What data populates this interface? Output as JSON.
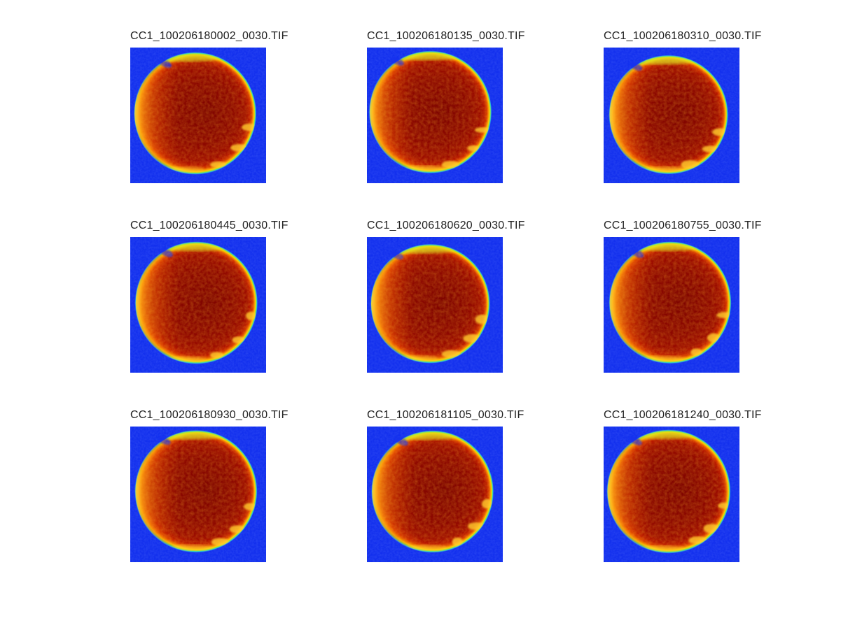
{
  "figure": {
    "background_color": "#ffffff",
    "description": "3x3 montage of TIFF camera frames rendered with a jet colormap; each frame shows a circular bright disk (high values, dark red) with an orange-yellow left limb and a green-cyan rim on a blue low-value background",
    "colormap": "jet",
    "grid_rows": 3,
    "grid_cols": 3
  },
  "palette": {
    "background_blue": "#1330ee",
    "rim_cyan": "#22d8cc",
    "rim_green": "#a8e428",
    "band_yellow": "#ffd000",
    "band_orange": "#f58a00",
    "disk_red": "#b81800",
    "disk_dark_red": "#7e0400",
    "title_color": "#222222"
  },
  "chart_data": {
    "type": "heatmap",
    "layout": "3x3 subplot montage, no axes or colorbars visible",
    "colormap": "jet",
    "axes_visible": false,
    "subplot_titles": [
      "CC1_100206180002_0030.TIF",
      "CC1_100206180135_0030.TIF",
      "CC1_100206180310_0030.TIF",
      "CC1_100206180445_0030.TIF",
      "CC1_100206180620_0030.TIF",
      "CC1_100206180755_0030.TIF",
      "CC1_100206180930_0030.TIF",
      "CC1_100206181105_0030.TIF",
      "CC1_100206181240_0030.TIF"
    ],
    "content_note": "each subplot depicts the same circular specimen: saturated dark-red interior (center-right), brighter orange/yellow crescent on the left limb, thin green-to-cyan boundary ring, uniform blue background, small yellow blotches along the lower-right rim"
  },
  "tiles": [
    {
      "title": "CC1_100206180002_0030.TIF",
      "seed": 11
    },
    {
      "title": "CC1_100206180135_0030.TIF",
      "seed": 23
    },
    {
      "title": "CC1_100206180310_0030.TIF",
      "seed": 37
    },
    {
      "title": "CC1_100206180445_0030.TIF",
      "seed": 41
    },
    {
      "title": "CC1_100206180620_0030.TIF",
      "seed": 53
    },
    {
      "title": "CC1_100206180755_0030.TIF",
      "seed": 67
    },
    {
      "title": "CC1_100206180930_0030.TIF",
      "seed": 71
    },
    {
      "title": "CC1_100206181105_0030.TIF",
      "seed": 83
    },
    {
      "title": "CC1_100206181240_0030.TIF",
      "seed": 97
    }
  ]
}
